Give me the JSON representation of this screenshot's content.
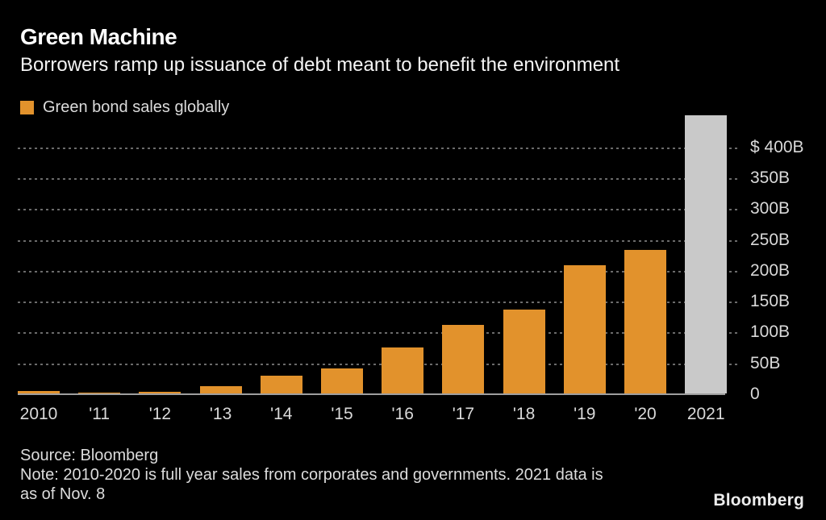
{
  "header": {
    "title": "Green Machine",
    "subtitle": "Borrowers ramp up issuance of debt meant to benefit the environment"
  },
  "legend": {
    "label": "Green bond sales globally"
  },
  "colors": {
    "bar": "#e2922c",
    "highlight_bar": "#c9c9c9",
    "grid": "#6b6b6b",
    "axis_line": "#9e9e9e",
    "text": "#d9d9d9",
    "title": "#ffffff",
    "background": "#000000"
  },
  "chart_data": {
    "type": "bar",
    "title": "Green bond sales globally",
    "unit": "billion USD",
    "categories": [
      "2010",
      "'11",
      "'12",
      "'13",
      "'14",
      "'15",
      "'16",
      "'17",
      "'18",
      "'19",
      "'20",
      "2021"
    ],
    "values": [
      4,
      1.5,
      3,
      12,
      29,
      40,
      75,
      111,
      136,
      208,
      232,
      450
    ],
    "highlight_index": 11,
    "highlight_meaning": "2021 partial-year data shown in gray",
    "ylim": [
      0,
      460
    ],
    "grid": "dotted horizontal lines",
    "legend_position": "top-left",
    "yaxis_position": "right",
    "yticks": [
      {
        "label": "$ 400B",
        "value": 400
      },
      {
        "label": "350B",
        "value": 350
      },
      {
        "label": "300B",
        "value": 300
      },
      {
        "label": "250B",
        "value": 250
      },
      {
        "label": "200B",
        "value": 200
      },
      {
        "label": "150B",
        "value": 150
      },
      {
        "label": "100B",
        "value": 100
      },
      {
        "label": "50B",
        "value": 50
      },
      {
        "label": "0",
        "value": 0
      }
    ]
  },
  "footer": {
    "source": "Source: Bloomberg",
    "note_lines": [
      "Note: 2010-2020 is full year sales from corporates and governments. 2021 data is",
      "as of Nov. 8"
    ],
    "logo": "Bloomberg"
  }
}
